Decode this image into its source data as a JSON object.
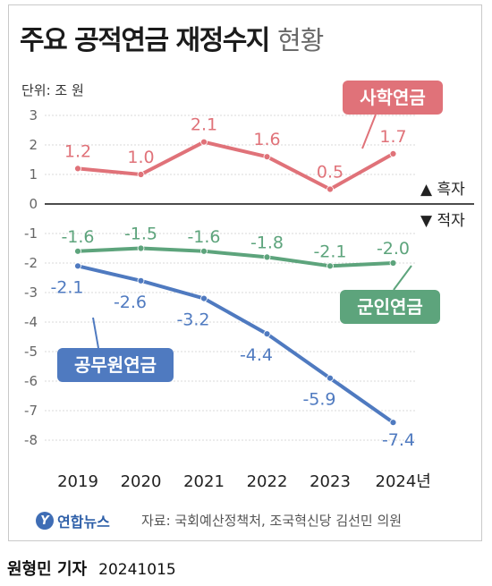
{
  "title": "주요 공적연금 재정수지",
  "subtitle": "현황",
  "unit_label": "단위: 조 원",
  "legend_markers": {
    "surplus": "▲ 흑자",
    "deficit": "▼ 적자"
  },
  "source": "자료: 국회예산정책처, 조국혁신당 김선민 의원",
  "logo_text": "연합뉴스",
  "logo_mark": "Y",
  "credit": {
    "byline": "원형민 기자",
    "date": "20241015"
  },
  "colors": {
    "teachers": "#e07279",
    "military": "#5da47c",
    "civil": "#4f7ac0",
    "zero_line": "#111111",
    "grid": "#d8d8d8"
  },
  "chart_data": {
    "type": "line",
    "x": [
      "2019",
      "2020",
      "2021",
      "2022",
      "2023",
      "2024"
    ],
    "x_tick_labels": [
      "2019",
      "2020",
      "2021",
      "2022",
      "2023",
      "2024년"
    ],
    "ylim": [
      -8,
      3
    ],
    "y_ticks": [
      "3",
      "2",
      "1",
      "0",
      "-1",
      "-2",
      "-3",
      "-4",
      "-5",
      "-6",
      "-7",
      "-8"
    ],
    "grid": true,
    "series": [
      {
        "name": "사학연금",
        "values": [
          1.2,
          1.0,
          2.1,
          1.6,
          0.5,
          1.7
        ],
        "labels": [
          "1.2",
          "1.0",
          "2.1",
          "1.6",
          "0.5",
          "1.7"
        ]
      },
      {
        "name": "군인연금",
        "values": [
          -1.6,
          -1.5,
          -1.6,
          -1.8,
          -2.1,
          -2.0
        ],
        "labels": [
          "-1.6",
          "-1.5",
          "-1.6",
          "-1.8",
          "-2.1",
          "-2.0"
        ]
      },
      {
        "name": "공무원연금",
        "values": [
          -2.1,
          -2.6,
          -3.2,
          -4.4,
          -5.9,
          -7.4
        ],
        "labels": [
          "-2.1",
          "-2.6",
          "-3.2",
          "-4.4",
          "-5.9",
          "-7.4"
        ]
      }
    ]
  }
}
